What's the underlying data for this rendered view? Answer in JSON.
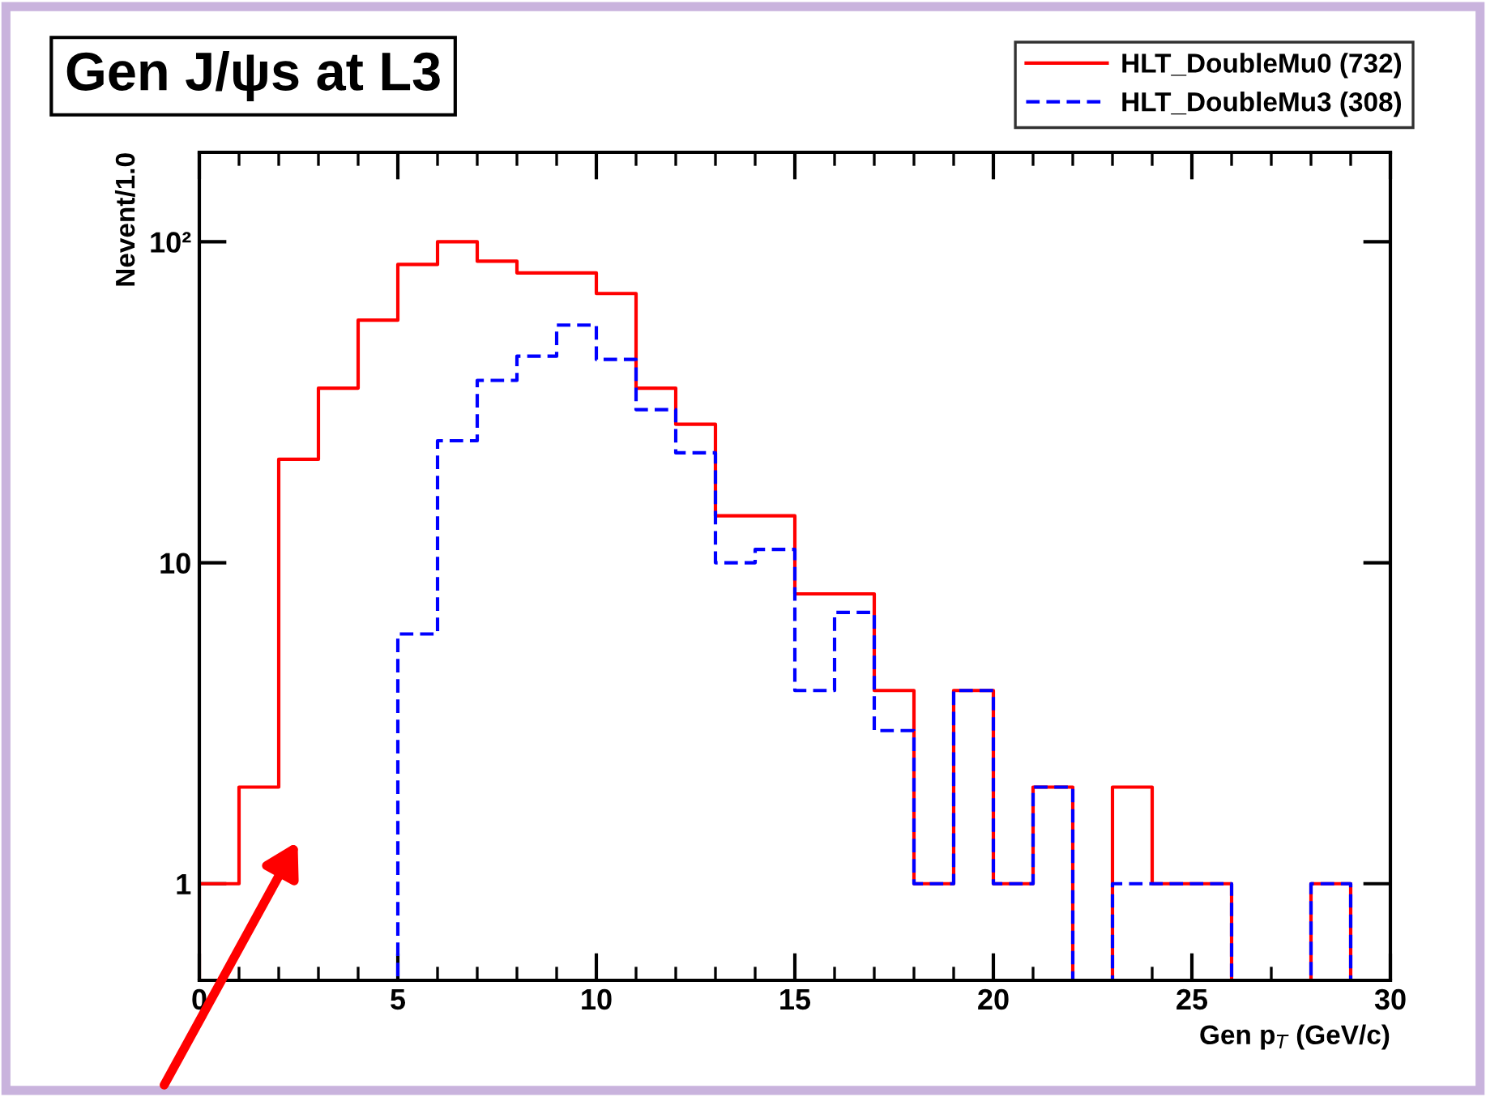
{
  "chart_data": {
    "type": "histogram",
    "title": "Gen J/ψs at L3",
    "xlabel": "Gen p$_{T}$ (GeV/c)",
    "ylabel": "Nevent/1.0",
    "bins": [
      0,
      1,
      2,
      3,
      4,
      5,
      6,
      7,
      8,
      9,
      10,
      11,
      12,
      13,
      14,
      15,
      16,
      17,
      18,
      19,
      20,
      21,
      22,
      23,
      24,
      25,
      26,
      27,
      28,
      29,
      30
    ],
    "series": [
      {
        "name": "HLT_DoubleMu0 (732)",
        "color": "#ff0000",
        "line_style": "solid",
        "values": [
          1,
          2,
          21,
          35,
          57,
          85,
          100,
          87,
          80,
          80,
          69,
          35,
          27,
          14,
          14,
          8,
          8,
          4,
          1,
          4,
          1,
          2,
          null,
          2,
          1,
          1,
          null,
          null,
          1,
          null
        ]
      },
      {
        "name": "HLT_DoubleMu3 (308)",
        "color": "#0000ff",
        "line_style": "dashed",
        "values": [
          null,
          null,
          null,
          null,
          null,
          6,
          24,
          37,
          44,
          55,
          43,
          30,
          22,
          10,
          11,
          4,
          7,
          3,
          1,
          4,
          1,
          2,
          null,
          1,
          1,
          1,
          null,
          null,
          1,
          null
        ]
      }
    ],
    "log": "y",
    "xlim": [
      0,
      30
    ],
    "ylim": [
      0.5,
      190
    ],
    "xticks": [
      0,
      5,
      10,
      15,
      20,
      25,
      30
    ],
    "yticks": [
      1,
      10,
      {
        "value": 100,
        "label": "10²"
      }
    ],
    "grid": false,
    "legend": "top right"
  }
}
